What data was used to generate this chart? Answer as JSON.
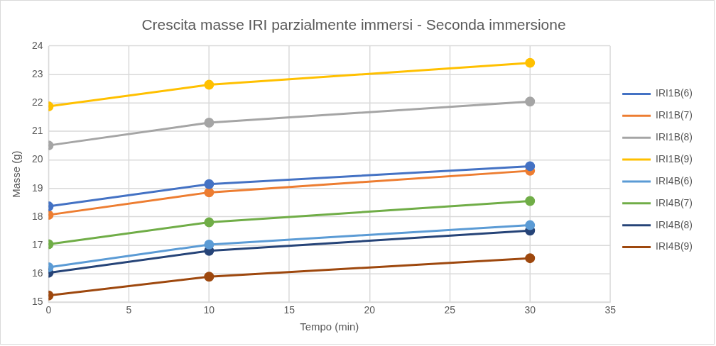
{
  "chart_data": {
    "type": "line",
    "title": "Crescita masse IRI parzialmente immersi - Seconda immersione",
    "xlabel": "Tempo (min)",
    "ylabel": "Masse (g)",
    "x": [
      0,
      10,
      30
    ],
    "xlim": [
      0,
      35
    ],
    "xticks": [
      0,
      5,
      10,
      15,
      20,
      25,
      30,
      35
    ],
    "ylim": [
      15,
      24
    ],
    "yticks": [
      15,
      16,
      17,
      18,
      19,
      20,
      21,
      22,
      23,
      24
    ],
    "grid": true,
    "legend": "right",
    "marker": "circle",
    "line_style": "solid",
    "series": [
      {
        "name": "IRI1B(6)",
        "color": "#4472c4",
        "values": [
          18.37,
          19.15,
          19.78
        ]
      },
      {
        "name": "IRI1B(7)",
        "color": "#ed7d31",
        "values": [
          18.07,
          18.86,
          19.62
        ]
      },
      {
        "name": "IRI1B(8)",
        "color": "#a5a5a5",
        "values": [
          20.51,
          21.31,
          22.05
        ]
      },
      {
        "name": "IRI1B(9)",
        "color": "#ffc000",
        "values": [
          21.88,
          22.64,
          23.41
        ]
      },
      {
        "name": "IRI4B(6)",
        "color": "#5b9bd5",
        "values": [
          16.23,
          17.03,
          17.71
        ]
      },
      {
        "name": "IRI4B(7)",
        "color": "#70ad47",
        "values": [
          17.04,
          17.81,
          18.56
        ]
      },
      {
        "name": "IRI4B(8)",
        "color": "#264478",
        "values": [
          16.04,
          16.81,
          17.52
        ]
      },
      {
        "name": "IRI4B(9)",
        "color": "#9e480e",
        "values": [
          15.24,
          15.9,
          16.55
        ]
      }
    ]
  }
}
